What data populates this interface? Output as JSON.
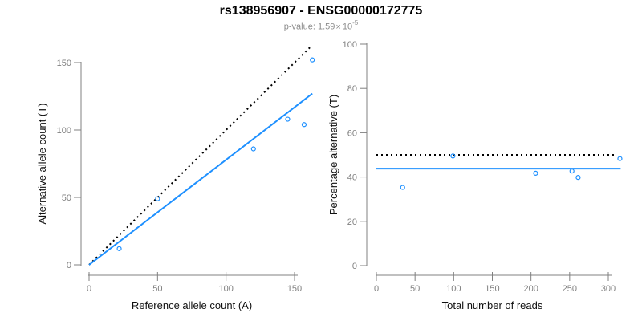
{
  "header": {
    "title": "rs138956907 - ENSG00000172775",
    "subtitle": {
      "label": "p-value:",
      "mantissa": "1.59",
      "times": "×",
      "base": "10",
      "exponent": "-5"
    }
  },
  "colors": {
    "accent_blue": "#1E90FF",
    "line_black": "#000000",
    "axis_gray": "#808080",
    "tick_label_gray": "#808080",
    "axis_title_black": "#111111",
    "subtitle_gray": "#8c8c8c"
  },
  "chart_data": [
    {
      "type": "scatter",
      "panel": "left",
      "xlabel": "Reference allele count (A)",
      "ylabel": "Alternative allele count (T)",
      "xticks": [
        0,
        50,
        100,
        150
      ],
      "yticks": [
        0,
        50,
        100,
        150
      ],
      "xlim": [
        0,
        165
      ],
      "ylim": [
        0,
        165
      ],
      "grid": false,
      "legend": "none",
      "points": [
        [
          22,
          12
        ],
        [
          50,
          49
        ],
        [
          120,
          86
        ],
        [
          145,
          108
        ],
        [
          157,
          104
        ],
        [
          163,
          152
        ]
      ],
      "lines": [
        {
          "name": "identity-line",
          "x1": 0,
          "y1": 0,
          "x2": 162,
          "y2": 162,
          "color": "#000000",
          "style": "dotted"
        },
        {
          "name": "fit-line",
          "x1": 0,
          "y1": 0,
          "x2": 163,
          "y2": 127,
          "color": "#1E90FF",
          "style": "solid"
        }
      ]
    },
    {
      "type": "scatter",
      "panel": "right",
      "xlabel": "Total number of reads",
      "ylabel": "Percentage alternative (T)",
      "xticks": [
        0,
        50,
        100,
        150,
        200,
        250,
        300
      ],
      "yticks": [
        0,
        20,
        40,
        60,
        80,
        100
      ],
      "xlim": [
        0,
        320
      ],
      "ylim": [
        0,
        100
      ],
      "grid": false,
      "legend": "none",
      "points": [
        [
          34,
          35.3
        ],
        [
          99,
          49.5
        ],
        [
          206,
          41.7
        ],
        [
          253,
          42.7
        ],
        [
          261,
          39.8
        ],
        [
          315,
          48.3
        ]
      ],
      "lines": [
        {
          "name": "expected-50pct-line",
          "x1": 0,
          "y1": 50,
          "x2": 309,
          "y2": 50,
          "color": "#000000",
          "style": "dotted"
        },
        {
          "name": "mean-percentage-line",
          "x1": 0,
          "y1": 43.8,
          "x2": 316,
          "y2": 43.8,
          "color": "#1E90FF",
          "style": "solid"
        }
      ]
    }
  ]
}
